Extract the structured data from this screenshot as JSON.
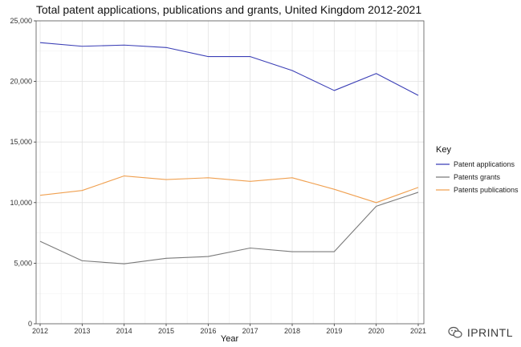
{
  "chart_data": {
    "type": "line",
    "title": "Total patent applications, publications and grants, United Kingdom 2012-2021",
    "xlabel": "Year",
    "ylabel": "",
    "x": [
      2012,
      2013,
      2014,
      2015,
      2016,
      2017,
      2018,
      2019,
      2020,
      2021
    ],
    "ylim": [
      0,
      25000
    ],
    "yticks": [
      0,
      5000,
      10000,
      15000,
      20000,
      25000
    ],
    "ytick_labels": [
      "0",
      "5,000",
      "10,000",
      "15,000",
      "20,000",
      "25,000"
    ],
    "grid": true,
    "legend": {
      "title": "Key",
      "placement": "right"
    },
    "series": [
      {
        "name": "Patent applications",
        "color": "#3b3fb6",
        "values": [
          23200,
          22900,
          23000,
          22800,
          22050,
          22050,
          20900,
          19250,
          20650,
          18850
        ]
      },
      {
        "name": "Patents grants",
        "color": "#7a7a7a",
        "values": [
          6800,
          5200,
          4950,
          5400,
          5550,
          6250,
          5950,
          5950,
          9700,
          10850
        ]
      },
      {
        "name": "Patents publications",
        "color": "#f0a050",
        "values": [
          10600,
          11000,
          12200,
          11900,
          12050,
          11750,
          12050,
          11100,
          10000,
          11250
        ]
      }
    ]
  },
  "watermark": {
    "text": "IPRINTL",
    "icon": "wechat-icon"
  }
}
